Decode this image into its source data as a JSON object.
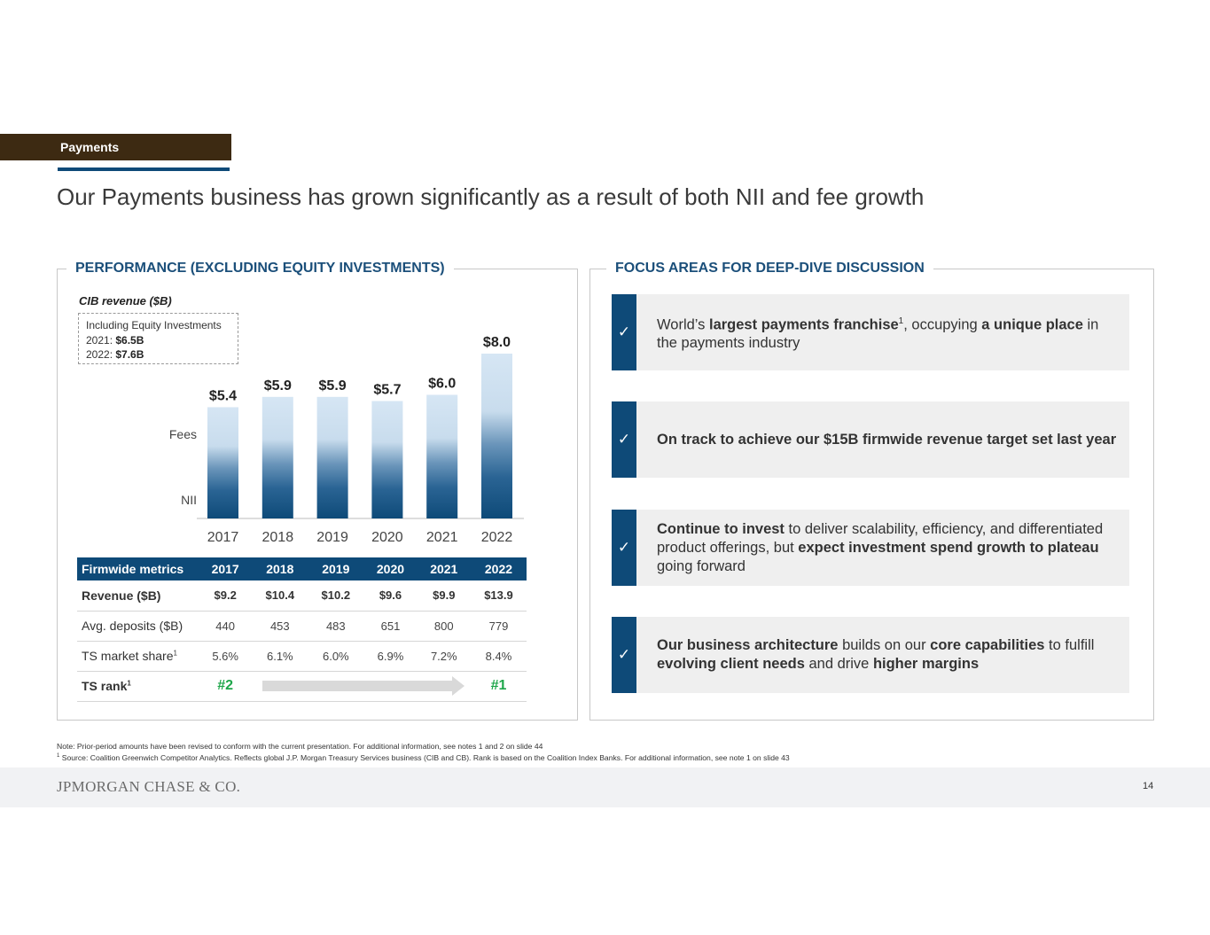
{
  "header": {
    "section_tag": "Payments",
    "title": "Our Payments business has grown significantly as a result of both NII and fee growth"
  },
  "left_panel": {
    "title": "PERFORMANCE (EXCLUDING EQUITY INVESTMENTS)",
    "chart_subtitle": "CIB revenue ($B)",
    "equity_box": {
      "line1": "Including Equity Investments",
      "line2_label": "2021: ",
      "line2_value": "$6.5B",
      "line3_label": "2022: ",
      "line3_value": "$7.6B"
    }
  },
  "chart_data": {
    "type": "bar",
    "title": "CIB revenue ($B)",
    "categories": [
      "2017",
      "2018",
      "2019",
      "2020",
      "2021",
      "2022"
    ],
    "values": [
      5.4,
      5.9,
      5.9,
      5.7,
      6.0,
      8.0
    ],
    "value_labels": [
      "$5.4",
      "$5.9",
      "$5.9",
      "$5.7",
      "$6.0",
      "$8.0"
    ],
    "components": [
      "Fees",
      "NII"
    ],
    "ylim": [
      0,
      8.0
    ],
    "colors": {
      "top": "#d6e6f4",
      "bottom": "#0e4a78"
    }
  },
  "metrics_table": {
    "headers": [
      "Firmwide metrics",
      "2017",
      "2018",
      "2019",
      "2020",
      "2021",
      "2022"
    ],
    "rows": {
      "revenue": [
        "Revenue ($B)",
        "$9.2",
        "$10.4",
        "$10.2",
        "$9.6",
        "$9.9",
        "$13.9"
      ],
      "deposits": [
        "Avg. deposits ($B)",
        "440",
        "453",
        "483",
        "651",
        "800",
        "779"
      ],
      "share": [
        "TS market share",
        "5.6%",
        "6.1%",
        "6.0%",
        "6.9%",
        "7.2%",
        "8.4%"
      ]
    },
    "superscript": "1",
    "rank": {
      "label": "TS rank",
      "start": "#2",
      "end": "#1"
    }
  },
  "right_panel": {
    "title": "FOCUS AREAS FOR DEEP-DIVE DISCUSSION",
    "check_glyph": "✓",
    "items": [
      {
        "a": "World’s ",
        "b": "largest payments franchise",
        "sup": "1",
        "c": ", occupying ",
        "d": "a unique place",
        "e": " in the payments industry"
      },
      {
        "b": "On track to achieve our $15B firmwide revenue target set last year"
      },
      {
        "b": "Continue to invest",
        "c": " to deliver scalability, efficiency, and differentiated product offerings, but ",
        "d": "expect investment spend growth to plateau",
        "e": " going forward"
      },
      {
        "b": "Our business architecture",
        "c": " builds on our ",
        "d": "core capabilities",
        "e": " to fulfill ",
        "f": "evolving client needs",
        "g": " and drive ",
        "h": "higher margins"
      }
    ]
  },
  "notes": {
    "note1": "Note: Prior-period amounts have been revised to conform with the current presentation. For additional information, see notes 1 and 2 on slide 44",
    "note2_sup": "1",
    "note2": " Source: Coalition Greenwich Competitor Analytics. Reflects global J.P. Morgan Treasury Services business (CIB and CB). Rank is based on the Coalition Index Banks. For additional information, see note 1 on slide 43"
  },
  "footer": {
    "logo": "JPMORGAN CHASE & CO.",
    "page_number": "14"
  }
}
